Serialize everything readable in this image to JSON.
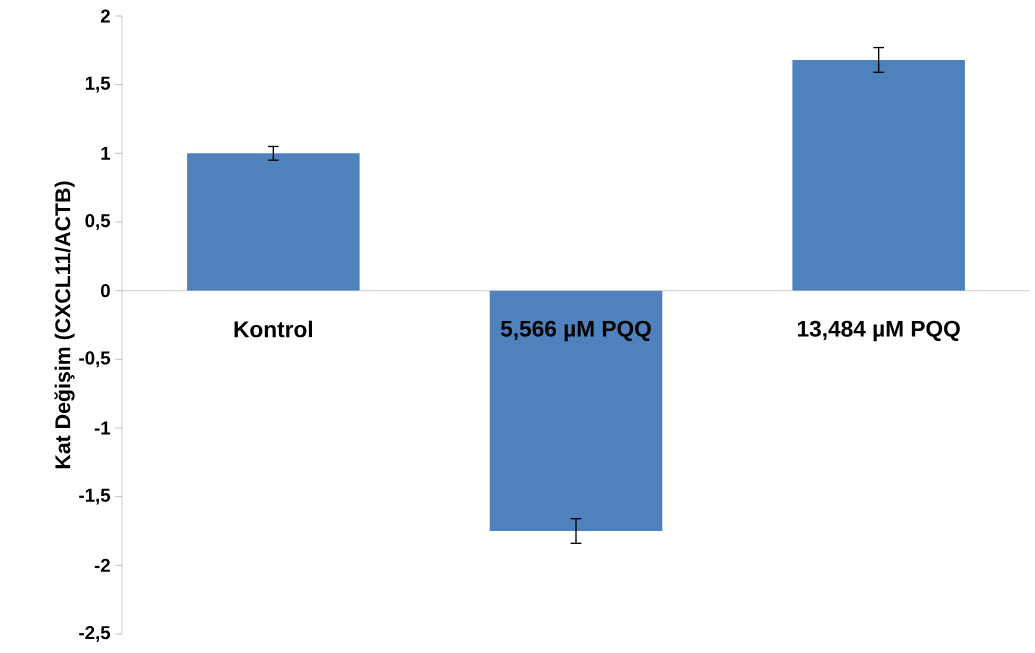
{
  "chart_data": {
    "type": "bar",
    "ylabel": "Kat Değişim (CXCL11/ACTB)",
    "categories": [
      "Kontrol",
      "5,566 µM PQQ",
      "13,484 µM PQQ"
    ],
    "values": [
      1.0,
      -1.75,
      1.68
    ],
    "errors": [
      0.05,
      0.09,
      0.09
    ],
    "color": "#4f81bd",
    "ylim": [
      -2.5,
      2
    ],
    "yticks": [
      {
        "value": -2.5,
        "label": "-2,5"
      },
      -2,
      {
        "value": -1.5,
        "label": "-1,5"
      },
      -1,
      {
        "value": -0.5,
        "label": "-0,5"
      },
      0,
      {
        "value": 0.5,
        "label": "0,5"
      },
      1,
      {
        "value": 1.5,
        "label": "1,5"
      },
      2
    ]
  }
}
